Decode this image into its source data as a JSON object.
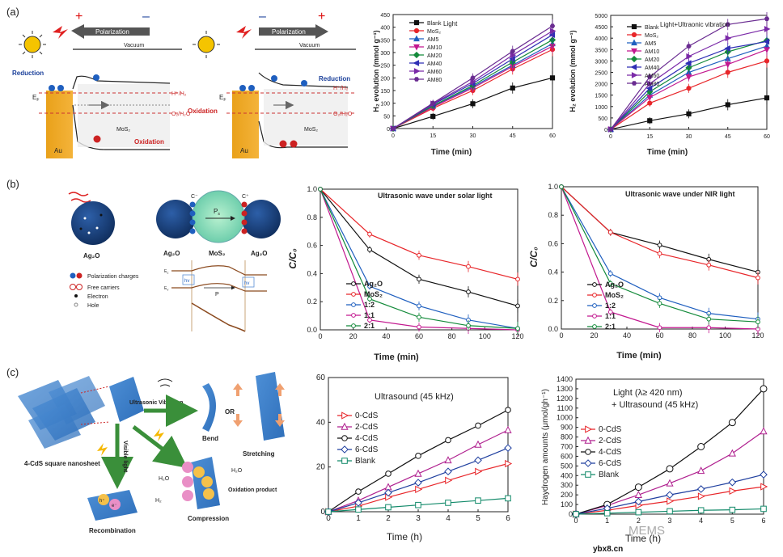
{
  "panel_labels": [
    "(a)",
    "(b)",
    "(c)"
  ],
  "schematic_a": {
    "polarization": "Polarization",
    "vacuum": "Vacuum",
    "reduction": "Reduction",
    "oxidation": "Oxidation",
    "ef": "E",
    "ef_sub": "F",
    "h_level": "H⁺/H₂",
    "o_level": "O₂/H₂O",
    "mos2": "MoS₂",
    "au": "Au",
    "plus": "+",
    "minus": "–"
  },
  "schematic_b": {
    "ag2o": "Ag₂O",
    "mos2": "MoS₂",
    "p_s": "P",
    "p_s_sub": "s",
    "p_bottom": "P",
    "hv": "hv",
    "c_minus": "C⁻",
    "c_plus": "C⁺",
    "ec": "E",
    "ec_sub": "c",
    "ev": "E",
    "ev_sub": "v",
    "legend": [
      "Polarization charges",
      "Free carriers",
      "Electron",
      "Hole"
    ]
  },
  "schematic_c": {
    "nanosheet": "4-CdS square nanosheet",
    "ultrasonic": "Ultrasonic Vibration",
    "bend": "Bend",
    "or": "OR",
    "stretching": "Stretching",
    "visible_light": "Visible light",
    "recombination": "Recombination",
    "compression": "Compression",
    "h2o_left": "H₂O",
    "h2": "H₂",
    "h2o_right": "H₂O",
    "oxidation_product": "Oxidation product",
    "hplus": "h⁺",
    "eminus": "e⁻"
  },
  "watermark": {
    "site": "ybx8.cn",
    "brand": "MEMS"
  },
  "chart_data": [
    {
      "id": "a1",
      "type": "line",
      "title": "Light",
      "xlabel": "Time (min)",
      "ylabel": "H₂ evolution (mmol g⁻¹)",
      "x": [
        0,
        15,
        30,
        45,
        60
      ],
      "xlim": [
        0,
        60
      ],
      "ylim": [
        0,
        450
      ],
      "yticks": [
        0,
        50,
        100,
        150,
        200,
        250,
        300,
        350,
        400,
        450
      ],
      "series": [
        {
          "name": "Blank",
          "color": "#111111",
          "marker": "square",
          "values": [
            0,
            48,
            98,
            160,
            200
          ]
        },
        {
          "name": "MoS₂",
          "color": "#e8262a",
          "marker": "circle",
          "values": [
            0,
            80,
            150,
            235,
            312
          ]
        },
        {
          "name": "AM5",
          "color": "#1f5fbf",
          "marker": "triangle",
          "values": [
            0,
            88,
            165,
            250,
            335
          ]
        },
        {
          "name": "AM10",
          "color": "#c2188f",
          "marker": "tri-down",
          "values": [
            0,
            85,
            160,
            245,
            325
          ]
        },
        {
          "name": "AM20",
          "color": "#138a3a",
          "marker": "diamond",
          "values": [
            0,
            90,
            170,
            262,
            350
          ]
        },
        {
          "name": "AM40",
          "color": "#2f2fb5",
          "marker": "tri-left",
          "values": [
            0,
            95,
            178,
            275,
            370
          ]
        },
        {
          "name": "AM60",
          "color": "#7b2aa8",
          "marker": "tri-right",
          "values": [
            0,
            98,
            185,
            290,
            385
          ]
        },
        {
          "name": "AM80",
          "color": "#6a2c91",
          "marker": "hexagon",
          "values": [
            0,
            100,
            200,
            305,
            405
          ]
        }
      ]
    },
    {
      "id": "a2",
      "type": "line",
      "title": "Light+Ultraonic vibration",
      "xlabel": "Time (min)",
      "ylabel": "H₂ evolution (mmol g⁻¹)",
      "x": [
        0,
        15,
        30,
        45,
        60
      ],
      "xlim": [
        0,
        60
      ],
      "ylim": [
        0,
        5000
      ],
      "yticks": [
        0,
        500,
        1000,
        1500,
        2000,
        2500,
        3000,
        3500,
        4000,
        4500,
        5000
      ],
      "series": [
        {
          "name": "Blank",
          "color": "#111111",
          "marker": "square",
          "values": [
            0,
            380,
            680,
            1080,
            1380
          ]
        },
        {
          "name": "MoS₂",
          "color": "#e8262a",
          "marker": "circle",
          "values": [
            0,
            1150,
            1800,
            2500,
            3000
          ]
        },
        {
          "name": "AM5",
          "color": "#1f5fbf",
          "marker": "triangle",
          "values": [
            0,
            1500,
            2500,
            3100,
            3650
          ]
        },
        {
          "name": "AM10",
          "color": "#c2188f",
          "marker": "tri-down",
          "values": [
            0,
            1400,
            2300,
            2850,
            3500
          ]
        },
        {
          "name": "AM20",
          "color": "#138a3a",
          "marker": "diamond",
          "values": [
            0,
            1650,
            2700,
            3400,
            3900
          ]
        },
        {
          "name": "AM40",
          "color": "#2f2fb5",
          "marker": "tri-left",
          "values": [
            0,
            1800,
            2900,
            3550,
            3850
          ]
        },
        {
          "name": "AM60",
          "color": "#7b2aa8",
          "marker": "tri-right",
          "values": [
            0,
            2000,
            3200,
            4000,
            4400
          ]
        },
        {
          "name": "AM80",
          "color": "#6a2c91",
          "marker": "hexagon",
          "values": [
            0,
            2300,
            3650,
            4600,
            4850
          ]
        }
      ]
    },
    {
      "id": "b1",
      "type": "line",
      "title": "Ultrasonic wave under solar light",
      "xlabel": "Time (min)",
      "ylabel": "C/C₀",
      "x": [
        0,
        30,
        60,
        90,
        120
      ],
      "xlim": [
        0,
        120
      ],
      "ylim": [
        0,
        1.0
      ],
      "xticks": [
        0,
        20,
        40,
        60,
        80,
        100,
        120
      ],
      "yticks": [
        0.0,
        0.2,
        0.4,
        0.6,
        0.8,
        1.0
      ],
      "series": [
        {
          "name": "Ag₂O",
          "color": "#111111",
          "marker": "circle",
          "values": [
            1.0,
            0.57,
            0.36,
            0.27,
            0.17
          ]
        },
        {
          "name": "MoS₂",
          "color": "#e8262a",
          "marker": "circle",
          "values": [
            1.0,
            0.68,
            0.53,
            0.45,
            0.36
          ]
        },
        {
          "name": "1:2",
          "color": "#1f5fbf",
          "marker": "circle",
          "values": [
            1.0,
            0.31,
            0.17,
            0.07,
            0.01
          ]
        },
        {
          "name": "1:1",
          "color": "#c2188f",
          "marker": "circle",
          "values": [
            1.0,
            0.07,
            0.02,
            0.01,
            0.0
          ]
        },
        {
          "name": "2:1",
          "color": "#138a3a",
          "marker": "circle",
          "values": [
            1.0,
            0.22,
            0.09,
            0.03,
            0.01
          ]
        }
      ]
    },
    {
      "id": "b2",
      "type": "line",
      "title": "Ultrasonic wave under NIR light",
      "xlabel": "Time (min)",
      "ylabel": "C/C₀",
      "x": [
        0,
        30,
        60,
        90,
        120
      ],
      "xlim": [
        0,
        120
      ],
      "ylim": [
        0,
        1.0
      ],
      "xticks": [
        0,
        20,
        40,
        60,
        80,
        100,
        120
      ],
      "yticks": [
        0.0,
        0.2,
        0.4,
        0.6,
        0.8,
        1.0
      ],
      "series": [
        {
          "name": "Ag₂O",
          "color": "#111111",
          "marker": "circle",
          "values": [
            1.0,
            0.68,
            0.59,
            0.49,
            0.4
          ]
        },
        {
          "name": "MoS₂",
          "color": "#e8262a",
          "marker": "circle",
          "values": [
            1.0,
            0.68,
            0.53,
            0.45,
            0.36
          ]
        },
        {
          "name": "1:2",
          "color": "#1f5fbf",
          "marker": "circle",
          "values": [
            1.0,
            0.39,
            0.22,
            0.11,
            0.07
          ]
        },
        {
          "name": "1:1",
          "color": "#c2188f",
          "marker": "circle",
          "values": [
            1.0,
            0.12,
            0.01,
            0.01,
            0.0
          ]
        },
        {
          "name": "2:1",
          "color": "#138a3a",
          "marker": "circle",
          "values": [
            1.0,
            0.32,
            0.18,
            0.07,
            0.05
          ]
        }
      ]
    },
    {
      "id": "c1",
      "type": "line",
      "title": "Ultrasound (45 kHz)",
      "xlabel": "Time (h)",
      "ylabel": "",
      "x": [
        0,
        1,
        2,
        3,
        4,
        5,
        6
      ],
      "xlim": [
        0,
        6
      ],
      "ylim": [
        0,
        60
      ],
      "yticks": [
        0,
        20,
        40,
        60
      ],
      "series": [
        {
          "name": "0-CdS",
          "color": "#e8262a",
          "marker": "tri-right",
          "values": [
            0,
            2.5,
            6.5,
            10,
            14,
            18,
            21.5
          ]
        },
        {
          "name": "2-CdS",
          "color": "#b0208f",
          "marker": "triangle",
          "values": [
            0,
            5,
            11,
            17,
            23,
            30,
            36.5
          ]
        },
        {
          "name": "4-CdS",
          "color": "#111111",
          "marker": "circle",
          "values": [
            0,
            9,
            17,
            25,
            32,
            38.5,
            45.5
          ]
        },
        {
          "name": "6-CdS",
          "color": "#1f3f9f",
          "marker": "diamond",
          "values": [
            0,
            4,
            8.5,
            13,
            18,
            23,
            28.5
          ]
        },
        {
          "name": "Blank",
          "color": "#138a6a",
          "marker": "square",
          "values": [
            0,
            1,
            2,
            3,
            4,
            5,
            6
          ]
        }
      ]
    },
    {
      "id": "c2",
      "type": "line",
      "title": "Light (λ≥ 420 nm)",
      "subtitle": "+ Ultrasound (45 kHz)",
      "xlabel": "Time (h)",
      "ylabel": "Haydrogen amounts (μmol/gh⁻¹)",
      "x": [
        0,
        1,
        2,
        3,
        4,
        5,
        6
      ],
      "xlim": [
        0,
        6
      ],
      "ylim": [
        0,
        1400
      ],
      "yticks": [
        0,
        100,
        200,
        300,
        400,
        500,
        600,
        700,
        800,
        900,
        1000,
        1100,
        1200,
        1300,
        1400
      ],
      "series": [
        {
          "name": "0-CdS",
          "color": "#e8262a",
          "marker": "tri-right",
          "values": [
            0,
            40,
            90,
            135,
            185,
            240,
            285
          ]
        },
        {
          "name": "2-CdS",
          "color": "#b0208f",
          "marker": "triangle",
          "values": [
            0,
            90,
            200,
            320,
            450,
            630,
            860
          ]
        },
        {
          "name": "4-CdS",
          "color": "#111111",
          "marker": "circle",
          "values": [
            0,
            100,
            280,
            470,
            700,
            950,
            1300
          ]
        },
        {
          "name": "6-CdS",
          "color": "#1f3f9f",
          "marker": "diamond",
          "values": [
            0,
            60,
            130,
            200,
            260,
            330,
            410
          ]
        },
        {
          "name": "Blank",
          "color": "#138a6a",
          "marker": "square",
          "values": [
            0,
            10,
            20,
            30,
            40,
            45,
            55
          ]
        }
      ]
    }
  ]
}
